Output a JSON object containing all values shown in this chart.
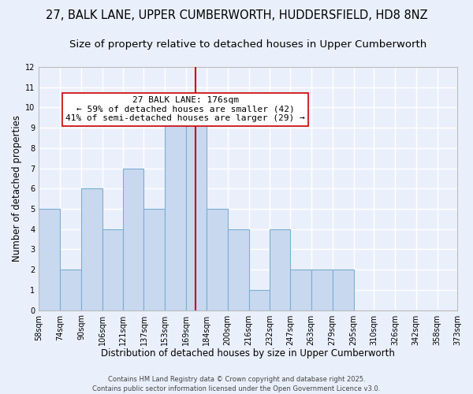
{
  "title": "27, BALK LANE, UPPER CUMBERWORTH, HUDDERSFIELD, HD8 8NZ",
  "subtitle": "Size of property relative to detached houses in Upper Cumberworth",
  "xlabel": "Distribution of detached houses by size in Upper Cumberworth",
  "ylabel": "Number of detached properties",
  "bin_edges": [
    58,
    74,
    90,
    106,
    121,
    137,
    153,
    169,
    184,
    200,
    216,
    232,
    247,
    263,
    279,
    295,
    310,
    326,
    342,
    358,
    373
  ],
  "bar_heights": [
    5,
    2,
    6,
    4,
    7,
    5,
    10,
    10,
    5,
    4,
    1,
    4,
    2,
    2,
    2,
    0,
    0,
    0,
    0,
    0
  ],
  "bar_color": "#c8d9ef",
  "bar_edgecolor": "#7aadd4",
  "bg_color": "#eaf0fb",
  "grid_color": "#ffffff",
  "vline_x": 176,
  "vline_color": "#cc0000",
  "annotation_text": "27 BALK LANE: 176sqm\n← 59% of detached houses are smaller (42)\n41% of semi-detached houses are larger (29) →",
  "annotation_box_color": "#ffffff",
  "annotation_box_edgecolor": "#cc0000",
  "ylim": [
    0,
    12
  ],
  "yticks": [
    0,
    1,
    2,
    3,
    4,
    5,
    6,
    7,
    8,
    9,
    10,
    11,
    12
  ],
  "tick_labels": [
    "58sqm",
    "74sqm",
    "90sqm",
    "106sqm",
    "121sqm",
    "137sqm",
    "153sqm",
    "169sqm",
    "184sqm",
    "200sqm",
    "216sqm",
    "232sqm",
    "247sqm",
    "263sqm",
    "279sqm",
    "295sqm",
    "310sqm",
    "326sqm",
    "342sqm",
    "358sqm",
    "373sqm"
  ],
  "footer_text": "Contains HM Land Registry data © Crown copyright and database right 2025.\nContains public sector information licensed under the Open Government Licence v3.0.",
  "title_fontsize": 10.5,
  "subtitle_fontsize": 9.5,
  "xlabel_fontsize": 8.5,
  "ylabel_fontsize": 8.5,
  "tick_fontsize": 7,
  "annotation_fontsize": 8,
  "footer_fontsize": 6
}
